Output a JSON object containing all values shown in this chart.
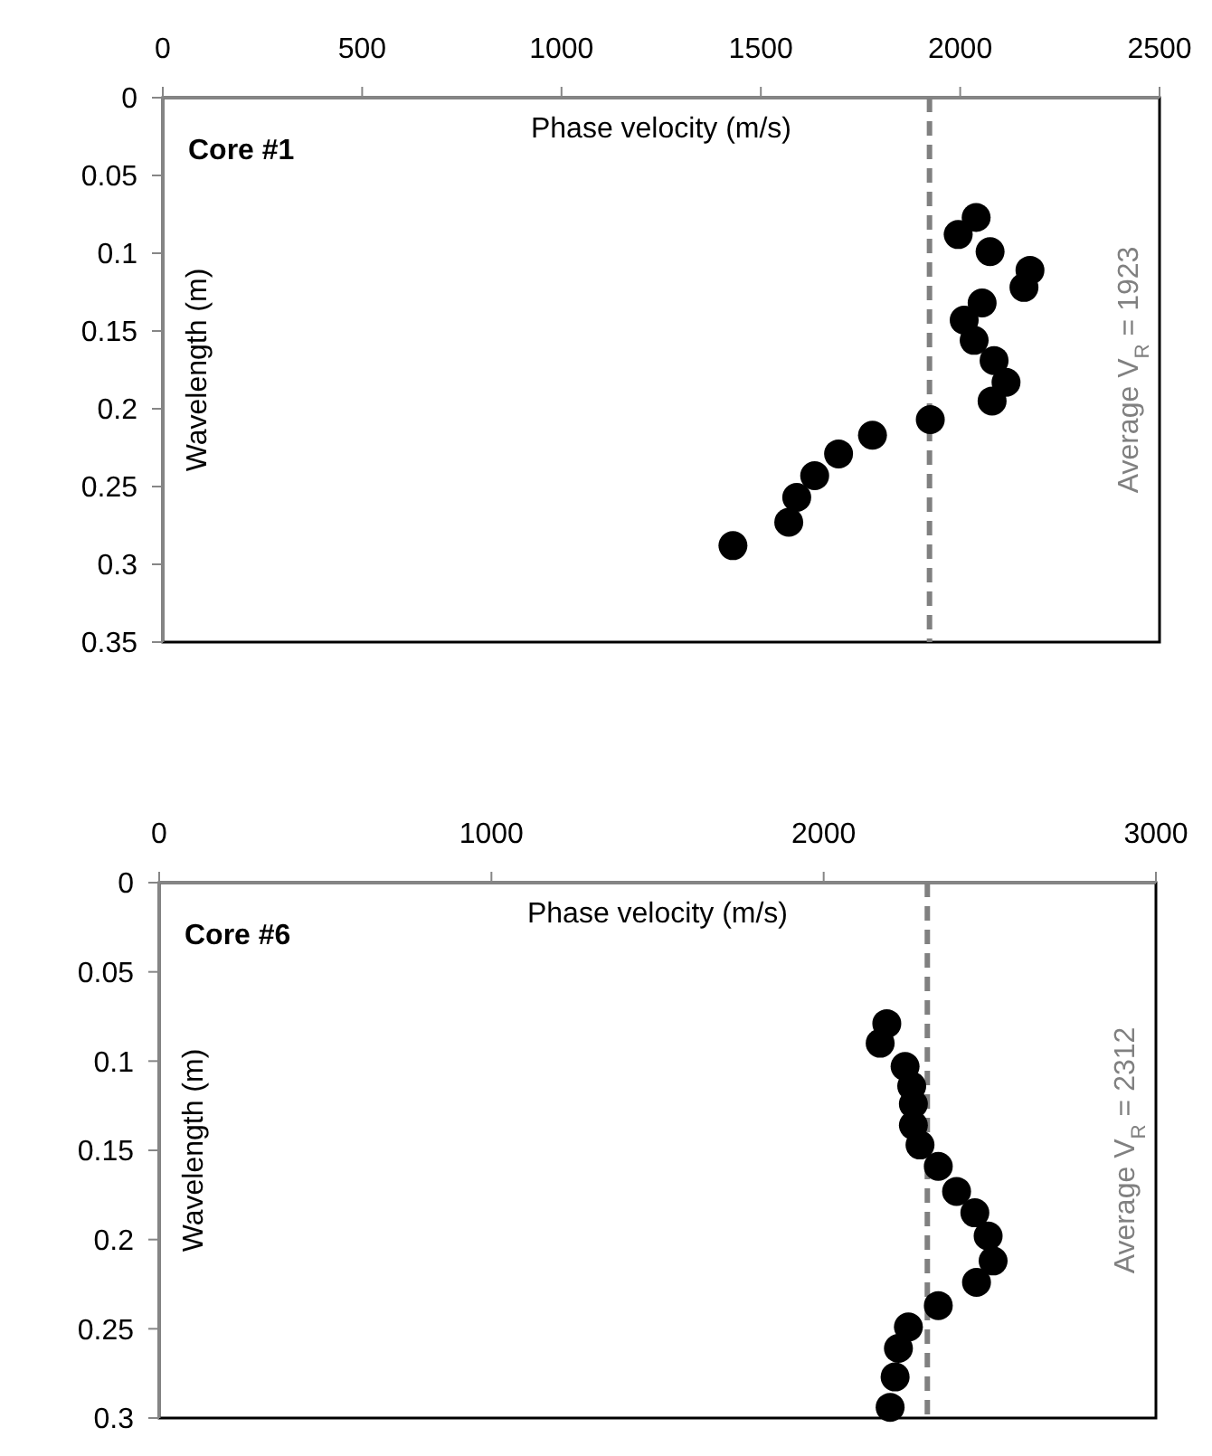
{
  "chart_data": [
    {
      "type": "scatter",
      "xlabel": "Phase velocity (m/s)",
      "ylabel": "Wavelength (m)",
      "annotations": [
        "Core #1"
      ],
      "marker": "circle",
      "grid": false,
      "xlim": [
        0,
        2500
      ],
      "xticks": [
        0,
        500,
        1000,
        1500,
        2000,
        2500
      ],
      "ylim": [
        0.35,
        0
      ],
      "yticks": [
        0,
        0.05,
        0.1,
        0.15,
        0.2,
        0.25,
        0.3,
        0.35
      ],
      "ref_lines": [
        {
          "axis": "x",
          "value": 1923,
          "label": "Average V$_{R}$ = 1923",
          "color": "#808080",
          "line_style": "dashed"
        }
      ],
      "series": [
        {
          "color": "#000000",
          "x": [
            2040,
            1995,
            2075,
            2175,
            2160,
            2055,
            2010,
            2035,
            2085,
            2115,
            2080,
            1925,
            1780,
            1695,
            1635,
            1590,
            1570,
            1430
          ],
          "values": [
            0.077,
            0.088,
            0.099,
            0.111,
            0.122,
            0.132,
            0.143,
            0.156,
            0.169,
            0.183,
            0.195,
            0.207,
            0.217,
            0.229,
            0.243,
            0.257,
            0.273,
            0.288
          ]
        }
      ]
    },
    {
      "type": "scatter",
      "xlabel": "Phase velocity (m/s)",
      "ylabel": "Wavelength (m)",
      "annotations": [
        "Core #6"
      ],
      "marker": "circle",
      "grid": false,
      "xlim": [
        0,
        3000
      ],
      "xticks": [
        0,
        1000,
        2000,
        3000
      ],
      "ylim": [
        0.3,
        0
      ],
      "yticks": [
        0,
        0.05,
        0.1,
        0.15,
        0.2,
        0.25,
        0.3
      ],
      "ref_lines": [
        {
          "axis": "x",
          "value": 2312,
          "label": "Average V$_{R}$ = 2312",
          "color": "#808080",
          "line_style": "dashed"
        }
      ],
      "series": [
        {
          "color": "#000000",
          "x": [
            2190,
            2170,
            2245,
            2265,
            2270,
            2270,
            2290,
            2345,
            2400,
            2455,
            2495,
            2510,
            2460,
            2345,
            2255,
            2225,
            2215,
            2200
          ],
          "values": [
            0.079,
            0.09,
            0.103,
            0.114,
            0.124,
            0.136,
            0.147,
            0.159,
            0.173,
            0.185,
            0.198,
            0.212,
            0.224,
            0.237,
            0.249,
            0.261,
            0.277,
            0.294
          ]
        }
      ]
    }
  ]
}
